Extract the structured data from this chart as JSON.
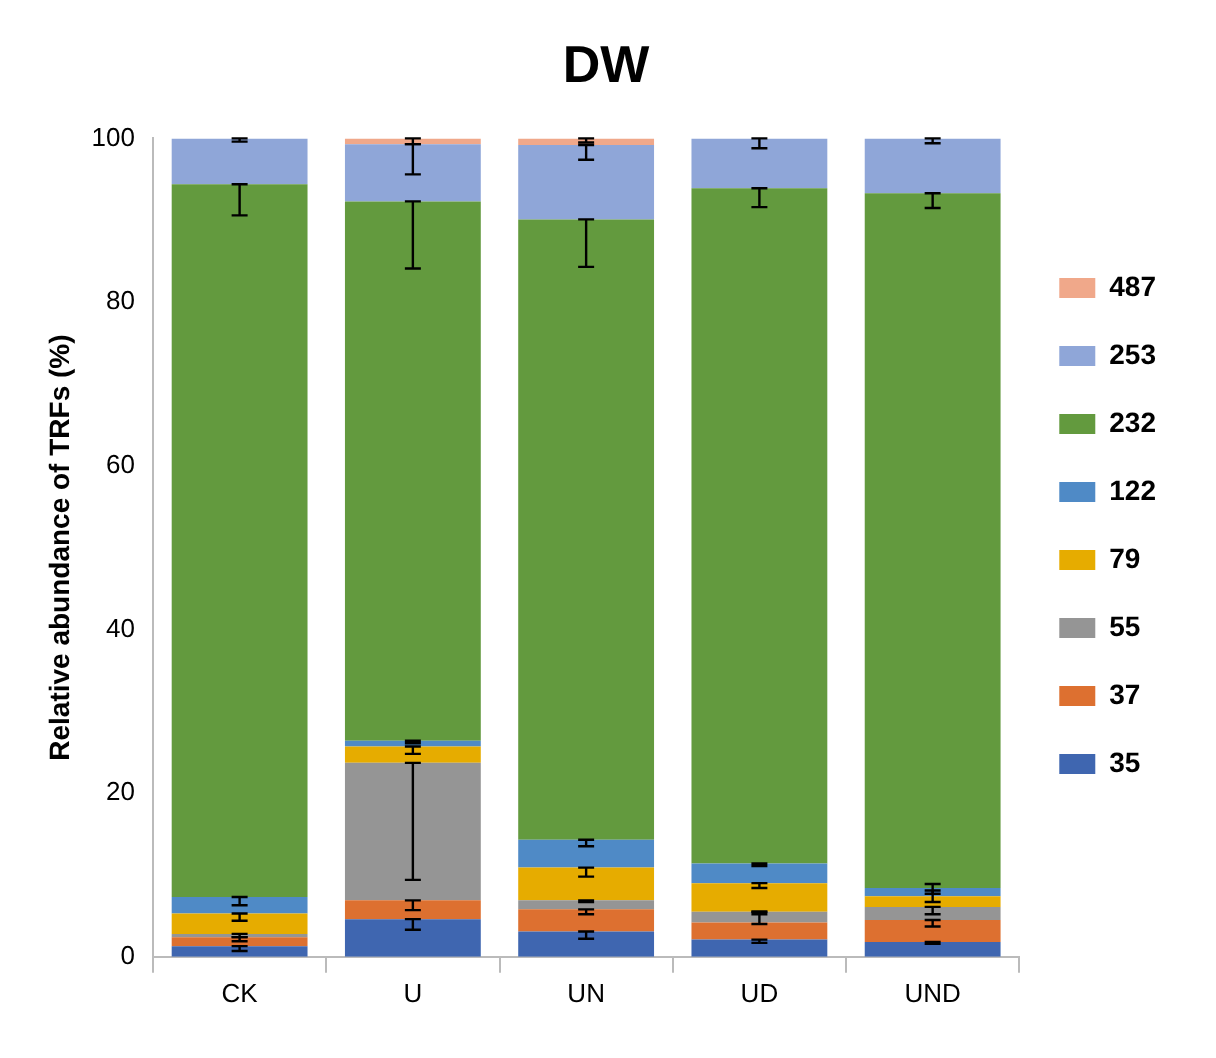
{
  "chart_data": {
    "type": "bar",
    "title": "DW",
    "ylabel": "Relative abundance of TRFs (%)",
    "categories": [
      "CK",
      "U",
      "UN",
      "UD",
      "UND"
    ],
    "stacked": true,
    "ylim": [
      0,
      100
    ],
    "yticks": [
      0,
      20,
      40,
      60,
      80,
      100
    ],
    "grid": false,
    "legend": "right",
    "series": [
      {
        "name": "35",
        "color": "#3f66b0",
        "values": [
          1.3,
          4.6,
          3.1,
          2.1,
          1.8
        ],
        "errors": [
          [
            0.7,
            1.3
          ],
          [
            3.3,
            4.6
          ],
          [
            2.2,
            3.1
          ],
          [
            1.7,
            2.1
          ],
          [
            1.6,
            1.8
          ]
        ]
      },
      {
        "name": "37",
        "color": "#dd7030",
        "values": [
          1.1,
          2.3,
          2.7,
          2.1,
          2.7
        ],
        "errors": [
          [
            1.9,
            2.4
          ],
          [
            5.7,
            6.9
          ],
          [
            5.2,
            5.8
          ],
          [
            4.0,
            5.5
          ],
          [
            3.7,
            4.5
          ]
        ]
      },
      {
        "name": "55",
        "color": "#959595",
        "values": [
          0.4,
          16.8,
          1.1,
          1.3,
          1.6
        ],
        "errors": [
          [
            2.4,
            2.8
          ],
          [
            9.4,
            23.7
          ],
          [
            6.7,
            6.9
          ],
          [
            5.2,
            5.5
          ],
          [
            5.2,
            6.1
          ]
        ]
      },
      {
        "name": "79",
        "color": "#e6ac00",
        "values": [
          2.5,
          2.0,
          4.0,
          3.5,
          1.3
        ],
        "errors": [
          [
            4.4,
            5.3
          ],
          [
            24.8,
            25.7
          ],
          [
            9.8,
            10.9
          ],
          [
            8.4,
            9.0
          ],
          [
            6.7,
            8.1
          ]
        ]
      },
      {
        "name": "122",
        "color": "#4f8ac6",
        "values": [
          2.0,
          0.7,
          3.4,
          2.4,
          1.0
        ],
        "errors": [
          [
            6.3,
            7.3
          ],
          [
            26.1,
            26.4
          ],
          [
            13.5,
            14.3
          ],
          [
            11.1,
            11.4
          ],
          [
            7.7,
            8.9
          ]
        ]
      },
      {
        "name": "232",
        "color": "#639a3e",
        "values": [
          87.1,
          65.9,
          75.8,
          82.5,
          84.9
        ],
        "errors": [
          [
            90.6,
            94.4
          ],
          [
            84.1,
            92.3
          ],
          [
            84.3,
            90.1
          ],
          [
            91.6,
            93.9
          ],
          [
            91.5,
            93.3
          ]
        ]
      },
      {
        "name": "253",
        "color": "#8fa6d8",
        "values": [
          5.6,
          7.0,
          9.1,
          6.1,
          6.7
        ],
        "errors": [
          [
            99.6,
            100
          ],
          [
            95.6,
            99.3
          ],
          [
            97.4,
            99.2
          ],
          [
            98.8,
            100
          ],
          [
            99.4,
            100
          ]
        ]
      },
      {
        "name": "487",
        "color": "#f0a88a",
        "values": [
          0,
          0.7,
          0.8,
          0,
          0
        ],
        "errors": [
          null,
          [
            99.3,
            100
          ],
          [
            99.5,
            100
          ],
          null,
          null
        ]
      }
    ]
  }
}
